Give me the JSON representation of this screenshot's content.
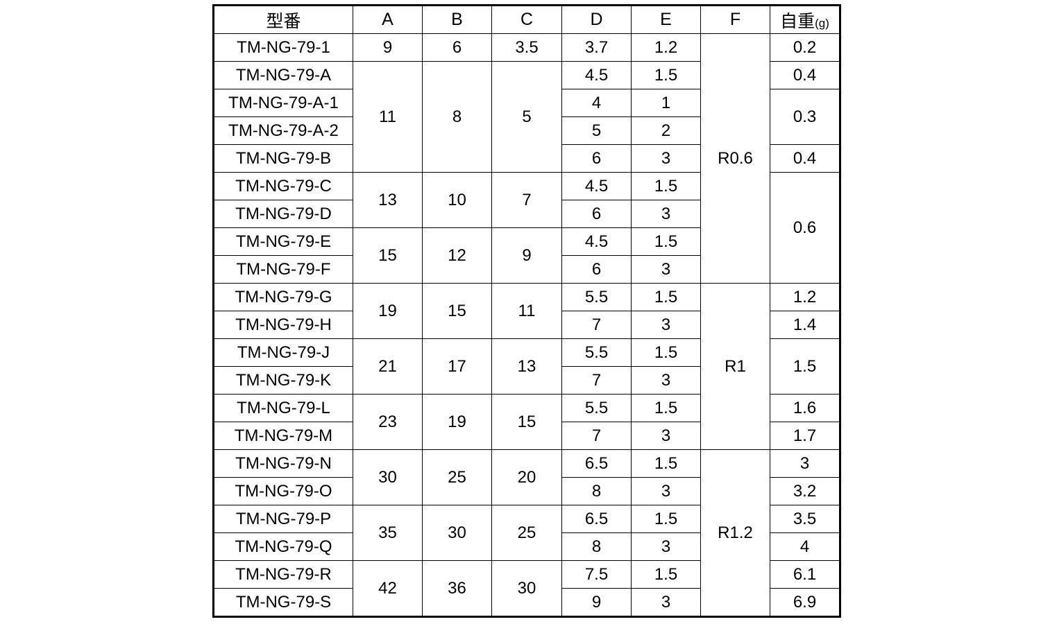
{
  "header": {
    "model": "型番",
    "A": "A",
    "B": "B",
    "C": "C",
    "D": "D",
    "E": "E",
    "F": "F",
    "weight": "自重",
    "weight_unit": "(g)"
  },
  "columns": [
    "model",
    "A",
    "B",
    "C",
    "D",
    "E",
    "F",
    "weight"
  ],
  "rows": [
    [
      {
        "c": "model",
        "v": "TM-NG-79-1"
      },
      {
        "c": "A",
        "v": "9"
      },
      {
        "c": "B",
        "v": "6"
      },
      {
        "c": "C",
        "v": "3.5"
      },
      {
        "c": "D",
        "v": "3.7"
      },
      {
        "c": "E",
        "v": "1.2"
      },
      {
        "c": "F",
        "v": "R0.6",
        "span": 9
      },
      {
        "c": "weight",
        "v": "0.2"
      }
    ],
    [
      {
        "c": "model",
        "v": "TM-NG-79-A"
      },
      {
        "c": "A",
        "v": "11",
        "span": 4
      },
      {
        "c": "B",
        "v": "8",
        "span": 4
      },
      {
        "c": "C",
        "v": "5",
        "span": 4
      },
      {
        "c": "D",
        "v": "4.5"
      },
      {
        "c": "E",
        "v": "1.5"
      },
      {
        "c": "weight",
        "v": "0.4"
      }
    ],
    [
      {
        "c": "model",
        "v": "TM-NG-79-A-1"
      },
      {
        "c": "D",
        "v": "4"
      },
      {
        "c": "E",
        "v": "1"
      },
      {
        "c": "weight",
        "v": "0.3",
        "span": 2
      }
    ],
    [
      {
        "c": "model",
        "v": "TM-NG-79-A-2"
      },
      {
        "c": "D",
        "v": "5"
      },
      {
        "c": "E",
        "v": "2"
      }
    ],
    [
      {
        "c": "model",
        "v": "TM-NG-79-B"
      },
      {
        "c": "D",
        "v": "6"
      },
      {
        "c": "E",
        "v": "3"
      },
      {
        "c": "weight",
        "v": "0.4"
      }
    ],
    [
      {
        "c": "model",
        "v": "TM-NG-79-C"
      },
      {
        "c": "A",
        "v": "13",
        "span": 2
      },
      {
        "c": "B",
        "v": "10",
        "span": 2
      },
      {
        "c": "C",
        "v": "7",
        "span": 2
      },
      {
        "c": "D",
        "v": "4.5"
      },
      {
        "c": "E",
        "v": "1.5"
      },
      {
        "c": "weight",
        "v": "0.6",
        "span": 4
      }
    ],
    [
      {
        "c": "model",
        "v": "TM-NG-79-D"
      },
      {
        "c": "D",
        "v": "6"
      },
      {
        "c": "E",
        "v": "3"
      }
    ],
    [
      {
        "c": "model",
        "v": "TM-NG-79-E"
      },
      {
        "c": "A",
        "v": "15",
        "span": 2
      },
      {
        "c": "B",
        "v": "12",
        "span": 2
      },
      {
        "c": "C",
        "v": "9",
        "span": 2
      },
      {
        "c": "D",
        "v": "4.5"
      },
      {
        "c": "E",
        "v": "1.5"
      }
    ],
    [
      {
        "c": "model",
        "v": "TM-NG-79-F"
      },
      {
        "c": "D",
        "v": "6"
      },
      {
        "c": "E",
        "v": "3"
      }
    ],
    [
      {
        "c": "model",
        "v": "TM-NG-79-G"
      },
      {
        "c": "A",
        "v": "19",
        "span": 2
      },
      {
        "c": "B",
        "v": "15",
        "span": 2
      },
      {
        "c": "C",
        "v": "11",
        "span": 2
      },
      {
        "c": "D",
        "v": "5.5"
      },
      {
        "c": "E",
        "v": "1.5"
      },
      {
        "c": "F",
        "v": "R1",
        "span": 6
      },
      {
        "c": "weight",
        "v": "1.2"
      }
    ],
    [
      {
        "c": "model",
        "v": "TM-NG-79-H"
      },
      {
        "c": "D",
        "v": "7"
      },
      {
        "c": "E",
        "v": "3"
      },
      {
        "c": "weight",
        "v": "1.4"
      }
    ],
    [
      {
        "c": "model",
        "v": "TM-NG-79-J"
      },
      {
        "c": "A",
        "v": "21",
        "span": 2
      },
      {
        "c": "B",
        "v": "17",
        "span": 2
      },
      {
        "c": "C",
        "v": "13",
        "span": 2
      },
      {
        "c": "D",
        "v": "5.5"
      },
      {
        "c": "E",
        "v": "1.5"
      },
      {
        "c": "weight",
        "v": "1.5",
        "span": 2
      }
    ],
    [
      {
        "c": "model",
        "v": "TM-NG-79-K"
      },
      {
        "c": "D",
        "v": "7"
      },
      {
        "c": "E",
        "v": "3"
      }
    ],
    [
      {
        "c": "model",
        "v": "TM-NG-79-L"
      },
      {
        "c": "A",
        "v": "23",
        "span": 2
      },
      {
        "c": "B",
        "v": "19",
        "span": 2
      },
      {
        "c": "C",
        "v": "15",
        "span": 2
      },
      {
        "c": "D",
        "v": "5.5"
      },
      {
        "c": "E",
        "v": "1.5"
      },
      {
        "c": "weight",
        "v": "1.6"
      }
    ],
    [
      {
        "c": "model",
        "v": "TM-NG-79-M"
      },
      {
        "c": "D",
        "v": "7"
      },
      {
        "c": "E",
        "v": "3"
      },
      {
        "c": "weight",
        "v": "1.7"
      }
    ],
    [
      {
        "c": "model",
        "v": "TM-NG-79-N"
      },
      {
        "c": "A",
        "v": "30",
        "span": 2
      },
      {
        "c": "B",
        "v": "25",
        "span": 2
      },
      {
        "c": "C",
        "v": "20",
        "span": 2
      },
      {
        "c": "D",
        "v": "6.5"
      },
      {
        "c": "E",
        "v": "1.5"
      },
      {
        "c": "F",
        "v": "R1.2",
        "span": 6
      },
      {
        "c": "weight",
        "v": "3"
      }
    ],
    [
      {
        "c": "model",
        "v": "TM-NG-79-O"
      },
      {
        "c": "D",
        "v": "8"
      },
      {
        "c": "E",
        "v": "3"
      },
      {
        "c": "weight",
        "v": "3.2"
      }
    ],
    [
      {
        "c": "model",
        "v": "TM-NG-79-P"
      },
      {
        "c": "A",
        "v": "35",
        "span": 2
      },
      {
        "c": "B",
        "v": "30",
        "span": 2
      },
      {
        "c": "C",
        "v": "25",
        "span": 2
      },
      {
        "c": "D",
        "v": "6.5"
      },
      {
        "c": "E",
        "v": "1.5"
      },
      {
        "c": "weight",
        "v": "3.5"
      }
    ],
    [
      {
        "c": "model",
        "v": "TM-NG-79-Q"
      },
      {
        "c": "D",
        "v": "8"
      },
      {
        "c": "E",
        "v": "3"
      },
      {
        "c": "weight",
        "v": "4"
      }
    ],
    [
      {
        "c": "model",
        "v": "TM-NG-79-R"
      },
      {
        "c": "A",
        "v": "42",
        "span": 2
      },
      {
        "c": "B",
        "v": "36",
        "span": 2
      },
      {
        "c": "C",
        "v": "30",
        "span": 2
      },
      {
        "c": "D",
        "v": "7.5"
      },
      {
        "c": "E",
        "v": "1.5"
      },
      {
        "c": "weight",
        "v": "6.1"
      }
    ],
    [
      {
        "c": "model",
        "v": "TM-NG-79-S"
      },
      {
        "c": "D",
        "v": "9"
      },
      {
        "c": "E",
        "v": "3"
      },
      {
        "c": "weight",
        "v": "6.9"
      }
    ]
  ]
}
